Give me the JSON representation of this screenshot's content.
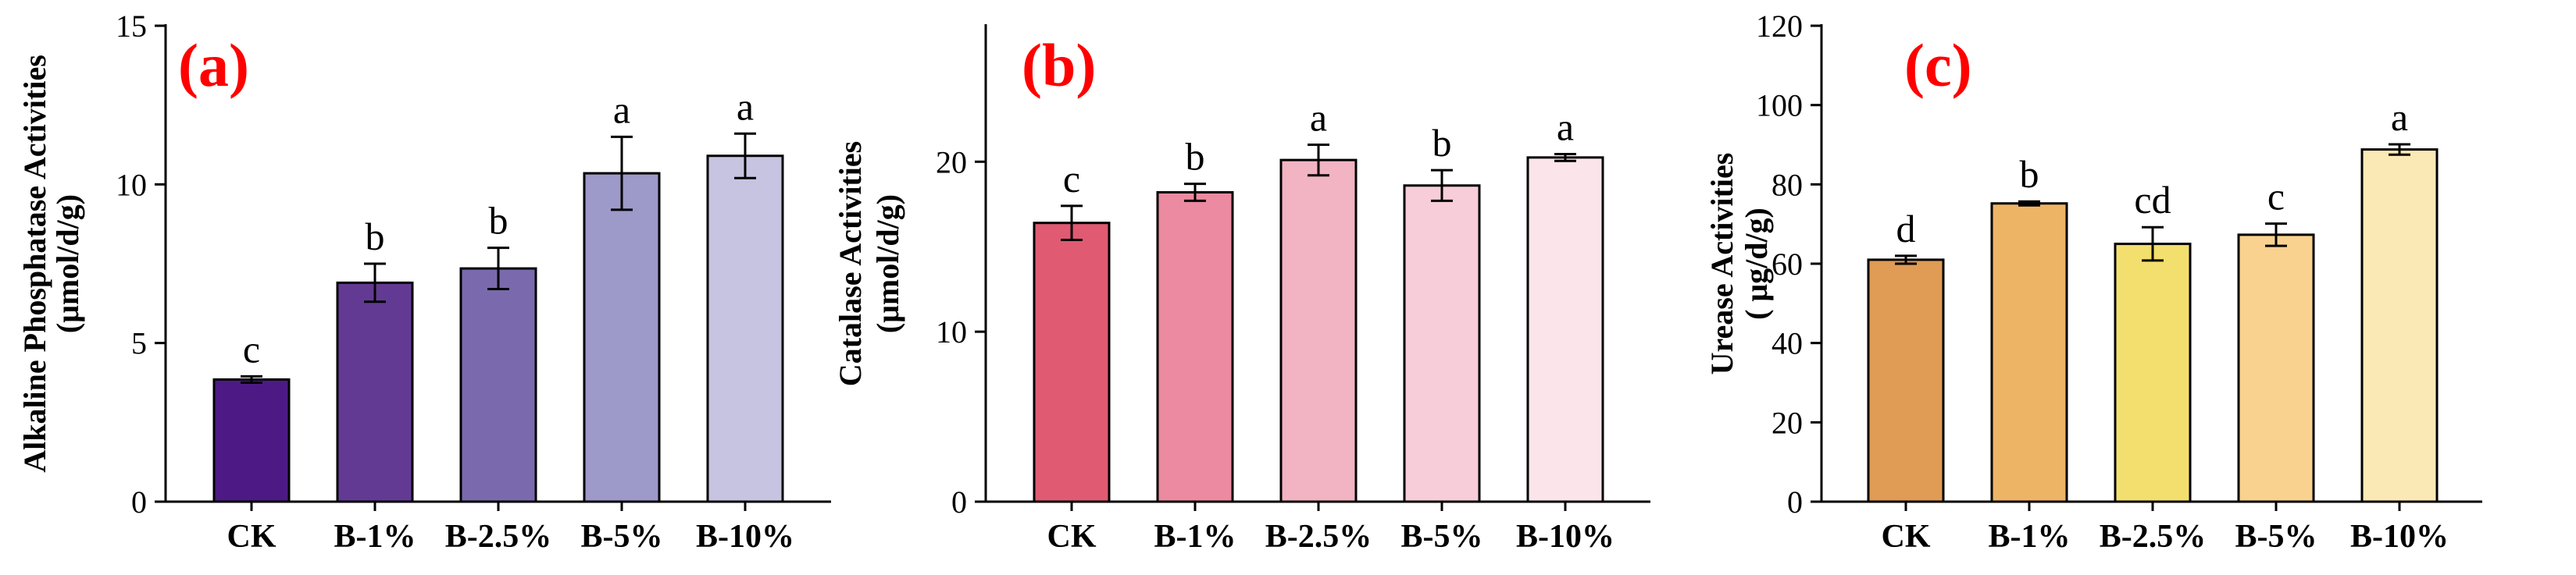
{
  "chart_data": [
    {
      "type": "bar",
      "panel_label": "(a)",
      "ylabel": "Alkaline Phosphatase Activities",
      "yunit": "(μmol/d/g)",
      "categories": [
        "CK",
        "B-1%",
        "B-2.5%",
        "B-5%",
        "B-10%"
      ],
      "values": [
        3.85,
        6.9,
        7.35,
        10.35,
        10.9
      ],
      "errors": [
        0.1,
        0.6,
        0.65,
        1.15,
        0.7
      ],
      "significance": [
        "c",
        "b",
        "b",
        "a",
        "a"
      ],
      "colors": [
        "#4d1a85",
        "#633a93",
        "#7a6aad",
        "#9d99c9",
        "#c6c4e0"
      ],
      "ylim": [
        0,
        15
      ],
      "yticks": [
        0,
        5,
        10,
        15
      ]
    },
    {
      "type": "bar",
      "panel_label": "(b)",
      "ylabel": "Catalase Activities",
      "yunit": "(μmol/d/g)",
      "categories": [
        "CK",
        "B-1%",
        "B-2.5%",
        "B-5%",
        "B-10%"
      ],
      "values": [
        16.4,
        18.2,
        20.1,
        18.6,
        20.25
      ],
      "errors": [
        1.0,
        0.5,
        0.9,
        0.9,
        0.2
      ],
      "significance": [
        "c",
        "b",
        "a",
        "b",
        "a"
      ],
      "colors": [
        "#e05a72",
        "#eb8aa0",
        "#f2b3c2",
        "#f6cdd8",
        "#fbe5ea"
      ],
      "ylim": [
        0,
        28
      ],
      "yticks": [
        0,
        10,
        20
      ]
    },
    {
      "type": "bar",
      "panel_label": "(c)",
      "ylabel": "Urease Activities",
      "yunit": "( μg/d/g)",
      "categories": [
        "CK",
        "B-1%",
        "B-2.5%",
        "B-5%",
        "B-10%"
      ],
      "values": [
        61,
        75.2,
        65,
        67.3,
        88.8
      ],
      "errors": [
        1.0,
        0.5,
        4.2,
        2.8,
        1.3
      ],
      "significance": [
        "d",
        "b",
        "cd",
        "c",
        "a"
      ],
      "colors": [
        "#e09b55",
        "#eeb466",
        "#f3df6e",
        "#f9d28f",
        "#fbe9b5"
      ],
      "ylim": [
        0,
        120
      ],
      "yticks": [
        0,
        20,
        40,
        60,
        80,
        100,
        120
      ]
    }
  ]
}
